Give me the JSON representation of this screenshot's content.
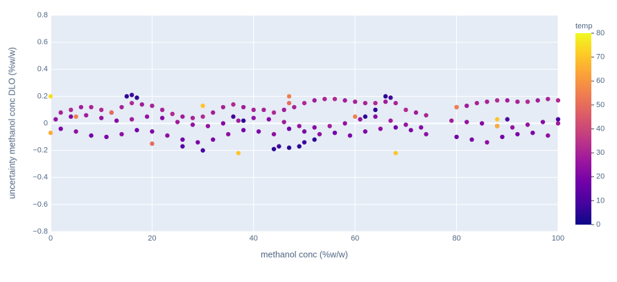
{
  "chart_data": {
    "type": "scatter",
    "x_label": "methanol conc (%w/w)",
    "y_label": "uncertainty methanol conc DLO (%w/w)",
    "colorbar_title": "temp",
    "x": [
      2,
      4,
      6,
      8,
      10,
      12,
      14,
      16,
      18,
      20,
      22,
      24,
      26,
      28,
      30,
      32,
      34,
      36,
      38,
      40,
      42,
      44,
      46,
      48,
      50,
      52,
      54,
      56,
      58,
      60,
      62,
      64,
      66,
      68,
      70,
      72,
      74,
      80,
      82,
      84,
      86,
      88,
      90,
      92,
      94,
      96,
      98,
      100,
      1,
      4,
      7,
      10,
      13,
      16,
      19,
      22,
      25,
      28,
      31,
      34,
      37,
      40,
      43,
      46,
      49,
      52,
      55,
      58,
      61,
      64,
      67,
      70,
      73,
      79,
      82,
      85,
      88,
      91,
      94,
      97,
      100,
      2,
      5,
      8,
      11,
      14,
      17,
      20,
      23,
      26,
      29,
      32,
      35,
      38,
      41,
      44,
      47,
      50,
      53,
      56,
      59,
      62,
      65,
      68,
      71,
      74,
      80,
      83,
      86,
      89,
      92,
      95,
      98,
      0,
      0,
      30,
      37,
      47,
      47,
      68,
      60,
      88,
      88,
      20,
      5,
      12,
      80,
      15,
      16,
      17,
      44,
      45,
      47,
      49,
      50,
      52,
      62,
      64,
      66,
      67,
      30,
      26,
      38,
      36,
      90,
      100
    ],
    "y": [
      0.08,
      0.1,
      0.12,
      0.12,
      0.1,
      0.08,
      0.12,
      0.15,
      0.14,
      0.13,
      0.1,
      0.07,
      0.05,
      0.04,
      0.05,
      0.08,
      0.12,
      0.14,
      0.12,
      0.1,
      0.1,
      0.08,
      0.1,
      0.12,
      0.15,
      0.17,
      0.18,
      0.18,
      0.17,
      0.16,
      0.15,
      0.15,
      0.16,
      0.15,
      0.1,
      0.08,
      0.06,
      0.12,
      0.13,
      0.15,
      0.16,
      0.17,
      0.17,
      0.16,
      0.16,
      0.17,
      0.18,
      0.17,
      0.03,
      0.05,
      0.06,
      0.04,
      0.02,
      0.03,
      0.05,
      0.04,
      0.01,
      -0.01,
      -0.02,
      0.0,
      0.02,
      0.04,
      0.03,
      0.01,
      -0.02,
      -0.03,
      -0.02,
      0.0,
      0.03,
      0.05,
      0.02,
      -0.01,
      -0.03,
      0.02,
      0.01,
      0.0,
      -0.02,
      -0.03,
      -0.01,
      0.01,
      0.0,
      -0.04,
      -0.06,
      -0.09,
      -0.1,
      -0.08,
      -0.05,
      -0.06,
      -0.09,
      -0.12,
      -0.14,
      -0.12,
      -0.08,
      -0.05,
      -0.06,
      -0.08,
      -0.04,
      -0.06,
      -0.08,
      -0.07,
      -0.09,
      -0.06,
      -0.04,
      -0.03,
      -0.05,
      -0.08,
      -0.1,
      -0.12,
      -0.14,
      -0.1,
      -0.08,
      -0.07,
      -0.09,
      0.2,
      -0.07,
      0.13,
      -0.22,
      0.2,
      0.15,
      -0.22,
      0.05,
      0.03,
      -0.02,
      -0.15,
      0.05,
      0.08,
      0.12,
      0.2,
      0.21,
      0.19,
      -0.19,
      -0.17,
      -0.18,
      -0.17,
      -0.14,
      -0.12,
      0.05,
      0.1,
      0.2,
      0.19,
      -0.2,
      -0.17,
      0.02,
      0.05,
      0.03,
      0.03
    ],
    "color_values": [
      30,
      32,
      28,
      30,
      32,
      28,
      30,
      32,
      28,
      30,
      30,
      32,
      28,
      30,
      32,
      28,
      30,
      32,
      28,
      30,
      30,
      32,
      28,
      30,
      32,
      28,
      30,
      32,
      28,
      30,
      30,
      32,
      28,
      30,
      32,
      28,
      30,
      32,
      28,
      30,
      30,
      32,
      28,
      30,
      32,
      28,
      30,
      32,
      25,
      22,
      28,
      25,
      22,
      28,
      25,
      22,
      28,
      25,
      25,
      22,
      28,
      25,
      22,
      28,
      25,
      22,
      28,
      25,
      25,
      22,
      28,
      25,
      22,
      28,
      25,
      22,
      28,
      25,
      25,
      22,
      28,
      20,
      24,
      18,
      20,
      24,
      18,
      20,
      24,
      18,
      20,
      20,
      24,
      18,
      20,
      24,
      18,
      20,
      24,
      18,
      20,
      20,
      24,
      18,
      20,
      24,
      18,
      20,
      24,
      18,
      20,
      20,
      24,
      75,
      65,
      70,
      70,
      55,
      50,
      70,
      55,
      70,
      65,
      50,
      55,
      50,
      55,
      5,
      8,
      5,
      5,
      8,
      5,
      5,
      8,
      5,
      5,
      5,
      5,
      8,
      10,
      12,
      5,
      8,
      10,
      10
    ],
    "colorscale": [
      "#0d0887",
      "#46039f",
      "#7201a8",
      "#9c179e",
      "#bd3786",
      "#d8576b",
      "#ed7953",
      "#fb9f3a",
      "#fdca26",
      "#f0f921"
    ],
    "color_lim": [
      0,
      80
    ],
    "color_ticks": [
      0,
      10,
      20,
      30,
      40,
      50,
      60,
      70,
      80
    ],
    "xlim": [
      0,
      100
    ],
    "xticks": [
      0,
      20,
      40,
      60,
      80,
      100
    ],
    "ylim": [
      -0.8,
      0.8
    ],
    "yticks": [
      {
        "value": -0.8,
        "label": "−0.8"
      },
      {
        "value": -0.6,
        "label": "−0.6"
      },
      {
        "value": -0.4,
        "label": "−0.4"
      },
      {
        "value": -0.2,
        "label": "−0.2"
      },
      0,
      0.2,
      0.4,
      0.6,
      0.8
    ],
    "plot_background": "#e5ecf6",
    "grid": true
  }
}
